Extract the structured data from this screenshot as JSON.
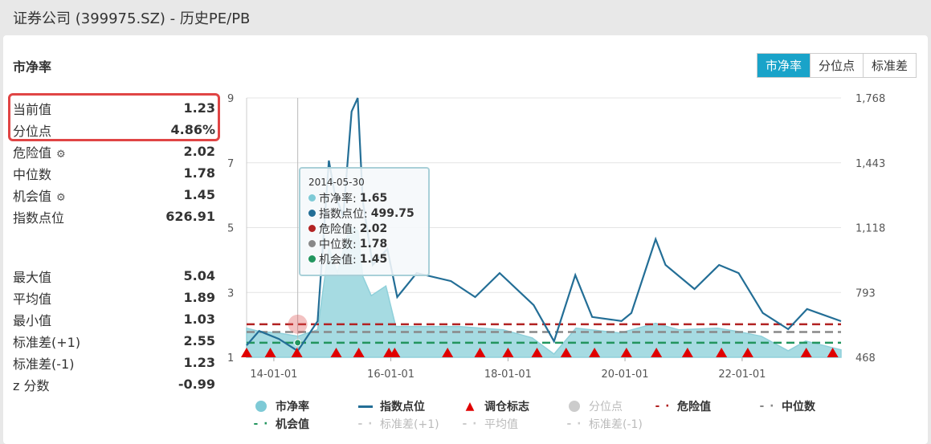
{
  "title": "证券公司 (399975.SZ) - 历史PE/PB",
  "section_title": "市净率",
  "tabs": [
    {
      "label": "市净率",
      "active": true
    },
    {
      "label": "分位点"
    },
    {
      "label": "标准差"
    }
  ],
  "stats_top": [
    {
      "label": "当前值",
      "value": "1.23"
    },
    {
      "label": "分位点",
      "value": "4.86%"
    },
    {
      "label": "危险值",
      "value": "2.02",
      "gear": true
    },
    {
      "label": "中位数",
      "value": "1.78"
    },
    {
      "label": "机会值",
      "value": "1.45",
      "gear": true
    },
    {
      "label": "指数点位",
      "value": "626.91"
    }
  ],
  "stats_bottom": [
    {
      "label": "最大值",
      "value": "5.04"
    },
    {
      "label": "平均值",
      "value": "1.89"
    },
    {
      "label": "最小值",
      "value": "1.03"
    },
    {
      "label": "标准差(+1)",
      "value": "2.55"
    },
    {
      "label": "标准差(-1)",
      "value": "1.23"
    },
    {
      "label": "z 分数",
      "value": "-0.99"
    }
  ],
  "tooltip": {
    "date": "2014-05-30",
    "rows": [
      {
        "label": "市净率:",
        "value": "1.65",
        "color": "#7ecad6"
      },
      {
        "label": "指数点位:",
        "value": "499.75",
        "color": "#236e96"
      },
      {
        "label": "危险值:",
        "value": "2.02",
        "color": "#b22222"
      },
      {
        "label": "中位数:",
        "value": "1.78",
        "color": "#888888"
      },
      {
        "label": "机会值:",
        "value": "1.45",
        "color": "#22955e"
      }
    ]
  },
  "legend": [
    {
      "label": "市净率",
      "type": "dot",
      "color": "#7ecad6"
    },
    {
      "label": "指数点位",
      "type": "line",
      "color": "#236e96"
    },
    {
      "label": "调仓标志",
      "type": "triangle",
      "color": "#e00000"
    },
    {
      "label": "分位点",
      "type": "dot",
      "color": "#cccccc",
      "dim": true
    },
    {
      "label": "危险值",
      "type": "dash",
      "color": "#b22222"
    },
    {
      "label": "中位数",
      "type": "dash",
      "color": "#888888"
    },
    {
      "label": "机会值",
      "type": "dash",
      "color": "#22955e"
    },
    {
      "label": "标准差(+1)",
      "type": "dash",
      "color": "#cccccc",
      "dim": true
    },
    {
      "label": "平均值",
      "type": "dash",
      "color": "#cccccc",
      "dim": true
    },
    {
      "label": "标准差(-1)",
      "type": "dash",
      "color": "#cccccc",
      "dim": true
    }
  ],
  "chart_data": {
    "type": "line",
    "x_ticks": [
      "14-01-01",
      "16-01-01",
      "18-01-01",
      "20-01-01",
      "22-01-01"
    ],
    "y_left_ticks": [
      "1",
      "3",
      "5",
      "7",
      "9"
    ],
    "ylim_left": [
      1,
      9
    ],
    "y_right_ticks": [
      "468",
      "793",
      "1,118",
      "1,443",
      "1,768"
    ],
    "ylim_right": [
      468,
      1768
    ],
    "xlim": [
      "2013-07-15",
      "2023-09-10"
    ],
    "grid": true,
    "pb": [
      [
        "2013-07-15",
        1.9
      ],
      [
        "2013-10-01",
        1.8
      ],
      [
        "2014-02-01",
        1.75
      ],
      [
        "2014-05-30",
        1.65
      ],
      [
        "2014-10-01",
        1.85
      ],
      [
        "2014-12-10",
        4.4
      ],
      [
        "2015-02-01",
        3.6
      ],
      [
        "2015-04-20",
        5.04
      ],
      [
        "2015-06-10",
        4.9
      ],
      [
        "2015-07-10",
        3.5
      ],
      [
        "2015-09-01",
        2.9
      ],
      [
        "2015-12-01",
        3.2
      ],
      [
        "2016-02-01",
        1.95
      ],
      [
        "2016-08-01",
        1.95
      ],
      [
        "2017-03-01",
        1.95
      ],
      [
        "2017-12-01",
        1.85
      ],
      [
        "2018-06-01",
        1.6
      ],
      [
        "2018-10-15",
        1.1
      ],
      [
        "2019-03-01",
        1.9
      ],
      [
        "2019-12-01",
        1.75
      ],
      [
        "2020-07-10",
        2.05
      ],
      [
        "2020-12-01",
        1.85
      ],
      [
        "2021-08-01",
        1.9
      ],
      [
        "2021-12-01",
        1.8
      ],
      [
        "2022-05-01",
        1.65
      ],
      [
        "2022-10-15",
        1.2
      ],
      [
        "2023-02-01",
        1.5
      ],
      [
        "2023-09-10",
        1.23
      ]
    ],
    "index": [
      [
        "2013-07-15",
        528
      ],
      [
        "2013-10-01",
        600
      ],
      [
        "2014-02-01",
        560
      ],
      [
        "2014-05-30",
        499.75
      ],
      [
        "2014-10-01",
        649
      ],
      [
        "2014-12-10",
        1454
      ],
      [
        "2015-01-15",
        1293
      ],
      [
        "2015-03-10",
        1172
      ],
      [
        "2015-05-01",
        1700
      ],
      [
        "2015-06-08",
        1768
      ],
      [
        "2015-07-10",
        1253
      ],
      [
        "2015-09-10",
        931
      ],
      [
        "2015-12-10",
        1011
      ],
      [
        "2016-02-10",
        770
      ],
      [
        "2016-06-10",
        890
      ],
      [
        "2017-01-10",
        850
      ],
      [
        "2017-06-10",
        770
      ],
      [
        "2017-11-10",
        890
      ],
      [
        "2018-06-10",
        730
      ],
      [
        "2018-10-15",
        548
      ],
      [
        "2019-02-25",
        880
      ],
      [
        "2019-06-10",
        670
      ],
      [
        "2019-12-10",
        650
      ],
      [
        "2020-02-10",
        690
      ],
      [
        "2020-07-10",
        1060
      ],
      [
        "2020-09-10",
        931
      ],
      [
        "2021-03-10",
        810
      ],
      [
        "2021-08-10",
        931
      ],
      [
        "2021-12-10",
        890
      ],
      [
        "2022-05-10",
        690
      ],
      [
        "2022-10-15",
        609
      ],
      [
        "2023-02-10",
        710
      ],
      [
        "2023-09-10",
        649
      ]
    ],
    "danger": 2.02,
    "median": 1.78,
    "chance": 1.45,
    "rebalance_dates": [
      "2013-07-15",
      "2013-12-10",
      "2014-05-25",
      "2015-01-25",
      "2015-06-15",
      "2015-12-20",
      "2016-01-25",
      "2016-12-20",
      "2017-07-10",
      "2018-01-01",
      "2018-07-01",
      "2018-12-30",
      "2019-06-25",
      "2020-01-10",
      "2020-07-15",
      "2021-01-25",
      "2021-08-25",
      "2022-02-05",
      "2023-02-05",
      "2023-07-20"
    ],
    "cursor_date": "2014-05-30"
  }
}
